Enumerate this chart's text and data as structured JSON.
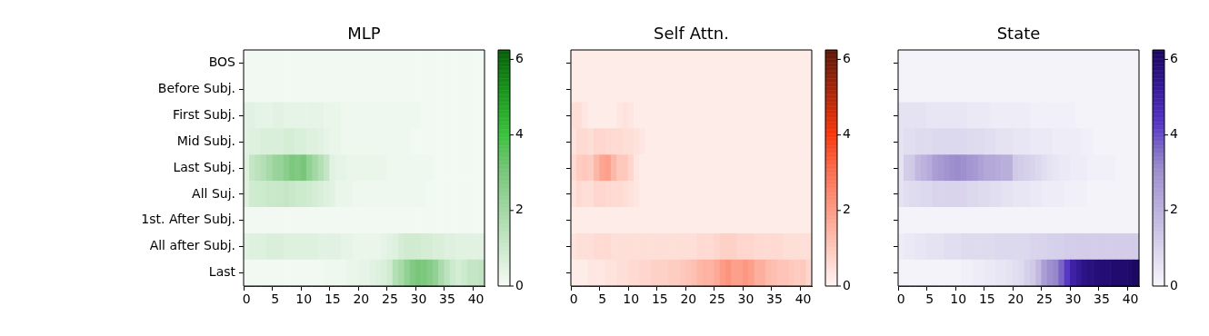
{
  "chart_data": [
    {
      "type": "heatmap",
      "title": "MLP",
      "color": "#74c476",
      "clim": [
        0,
        6.25
      ],
      "cticks": [
        0,
        2,
        4,
        6
      ],
      "categories": [
        "0",
        null,
        null,
        null,
        null,
        "5",
        null,
        null,
        null,
        null,
        "10",
        null,
        null,
        null,
        null,
        "15",
        null,
        null,
        null,
        null,
        "20",
        null,
        null,
        null,
        null,
        "25",
        null,
        null,
        null,
        null,
        "30",
        null,
        null,
        null,
        null,
        "35",
        null,
        null,
        null,
        null,
        "40",
        null
      ],
      "y_categories": [
        "BOS",
        "Before Subj.",
        "First Subj.",
        "Mid Subj.",
        "Last Subj.",
        "All Suj.",
        "1st. After Subj.",
        "All after Subj.",
        "Last"
      ],
      "cells": [
        [
          0.1,
          0.1,
          0.1,
          0.1,
          0.1,
          0.1,
          0.1,
          0.1,
          0.1,
          0.1,
          0.1,
          0.1,
          0.1,
          0.1,
          0.1,
          0.1,
          0.1,
          0.1,
          0.1,
          0.1,
          0.1,
          0.1,
          0.1,
          0.1,
          0.1,
          0.1,
          0.1,
          0.1,
          0.1,
          0.1,
          0.1,
          0.1,
          0.1,
          0.1,
          0.1,
          0.1,
          0.1,
          0.1,
          0.1,
          0.1,
          0.1,
          0.1
        ],
        [
          0.1,
          0.1,
          0.1,
          0.1,
          0.1,
          0.1,
          0.1,
          0.1,
          0.1,
          0.1,
          0.1,
          0.1,
          0.1,
          0.1,
          0.1,
          0.1,
          0.1,
          0.1,
          0.1,
          0.1,
          0.1,
          0.1,
          0.1,
          0.1,
          0.1,
          0.1,
          0.1,
          0.1,
          0.1,
          0.1,
          0.1,
          0.1,
          0.1,
          0.1,
          0.1,
          0.1,
          0.1,
          0.1,
          0.1,
          0.1,
          0.1,
          0.1
        ],
        [
          0.5,
          0.5,
          0.4,
          0.4,
          0.4,
          0.5,
          0.5,
          0.4,
          0.4,
          0.4,
          0.4,
          0.4,
          0.4,
          0.4,
          0.3,
          0.3,
          0.3,
          0.2,
          0.2,
          0.2,
          0.2,
          0.2,
          0.2,
          0.2,
          0.2,
          0.2,
          0.2,
          0.2,
          0.2,
          0.2,
          0.2,
          0.1,
          0.1,
          0.1,
          0.1,
          0.1,
          0.1,
          0.1,
          0.1,
          0.1,
          0.1,
          0.1
        ],
        [
          0.5,
          0.6,
          0.6,
          0.7,
          0.7,
          0.7,
          0.7,
          0.8,
          0.8,
          0.7,
          0.7,
          0.6,
          0.6,
          0.5,
          0.4,
          0.3,
          0.3,
          0.2,
          0.2,
          0.2,
          0.2,
          0.2,
          0.2,
          0.2,
          0.2,
          0.2,
          0.2,
          0.2,
          0.2,
          0.1,
          0.1,
          0.1,
          0.1,
          0.1,
          0.1,
          0.1,
          0.1,
          0.1,
          0.1,
          0.1,
          0.1,
          0.1
        ],
        [
          0.6,
          1.2,
          1.4,
          1.6,
          1.9,
          2.2,
          2.3,
          2.6,
          2.9,
          2.8,
          3.0,
          2.4,
          2.0,
          1.6,
          1.2,
          0.5,
          0.4,
          0.4,
          0.3,
          0.3,
          0.3,
          0.3,
          0.3,
          0.3,
          0.3,
          0.2,
          0.2,
          0.2,
          0.2,
          0.2,
          0.2,
          0.2,
          0.2,
          0.1,
          0.1,
          0.1,
          0.1,
          0.1,
          0.1,
          0.1,
          0.1,
          0.1
        ],
        [
          0.6,
          0.9,
          1.0,
          1.0,
          1.1,
          1.1,
          1.1,
          1.2,
          1.1,
          1.0,
          1.0,
          0.9,
          0.8,
          0.7,
          0.6,
          0.5,
          0.3,
          0.3,
          0.3,
          0.2,
          0.2,
          0.2,
          0.2,
          0.2,
          0.2,
          0.2,
          0.2,
          0.2,
          0.2,
          0.2,
          0.2,
          0.2,
          0.1,
          0.1,
          0.1,
          0.1,
          0.1,
          0.1,
          0.1,
          0.1,
          0.1,
          0.1
        ],
        [
          0.1,
          0.1,
          0.1,
          0.1,
          0.1,
          0.1,
          0.1,
          0.1,
          0.1,
          0.1,
          0.1,
          0.1,
          0.1,
          0.1,
          0.1,
          0.1,
          0.1,
          0.1,
          0.1,
          0.1,
          0.1,
          0.1,
          0.1,
          0.1,
          0.1,
          0.1,
          0.1,
          0.1,
          0.1,
          0.1,
          0.1,
          0.1,
          0.1,
          0.1,
          0.1,
          0.1,
          0.1,
          0.1,
          0.1,
          0.1,
          0.1,
          0.1
        ],
        [
          0.5,
          0.6,
          0.6,
          0.6,
          0.7,
          0.7,
          0.7,
          0.6,
          0.6,
          0.6,
          0.6,
          0.6,
          0.6,
          0.5,
          0.5,
          0.5,
          0.5,
          0.4,
          0.4,
          0.3,
          0.3,
          0.3,
          0.3,
          0.3,
          0.4,
          0.5,
          0.6,
          0.8,
          0.9,
          0.9,
          0.9,
          0.8,
          0.8,
          0.7,
          0.7,
          0.6,
          0.6,
          0.5,
          0.5,
          0.5,
          0.5,
          0.5
        ],
        [
          0.1,
          0.1,
          0.1,
          0.1,
          0.1,
          0.1,
          0.1,
          0.1,
          0.1,
          0.1,
          0.1,
          0.1,
          0.1,
          0.1,
          0.2,
          0.2,
          0.2,
          0.2,
          0.3,
          0.3,
          0.4,
          0.4,
          0.5,
          0.6,
          0.7,
          0.9,
          1.6,
          1.9,
          2.4,
          2.8,
          3.0,
          2.9,
          2.7,
          2.4,
          1.8,
          1.4,
          1.0,
          0.8,
          1.0,
          1.2,
          1.2,
          1.3
        ]
      ]
    },
    {
      "type": "heatmap",
      "title": "Self Attn.",
      "color": "#fb6a4a",
      "clim": [
        0,
        6.25
      ],
      "cticks": [
        0,
        2,
        4,
        6
      ],
      "tick_labels": "x",
      "categories": [
        "0",
        null,
        null,
        null,
        null,
        "5",
        null,
        null,
        null,
        null,
        "10",
        null,
        null,
        null,
        null,
        "15",
        null,
        null,
        null,
        null,
        "20",
        null,
        null,
        null,
        null,
        "25",
        null,
        null,
        null,
        null,
        "30",
        null,
        null,
        null,
        null,
        "35",
        null,
        null,
        null,
        null,
        "40",
        null
      ],
      "y_categories": [
        null,
        null,
        null,
        null,
        null,
        null,
        null,
        null,
        null
      ],
      "cells": [
        [
          0.2,
          0.2,
          0.2,
          0.2,
          0.2,
          0.2,
          0.2,
          0.2,
          0.2,
          0.2,
          0.2,
          0.2,
          0.2,
          0.2,
          0.2,
          0.2,
          0.2,
          0.2,
          0.2,
          0.2,
          0.2,
          0.2,
          0.2,
          0.2,
          0.2,
          0.2,
          0.2,
          0.2,
          0.2,
          0.2,
          0.2,
          0.2,
          0.2,
          0.2,
          0.2,
          0.2,
          0.2,
          0.2,
          0.2,
          0.2,
          0.2,
          0.2
        ],
        [
          0.2,
          0.2,
          0.2,
          0.2,
          0.2,
          0.2,
          0.2,
          0.2,
          0.2,
          0.2,
          0.2,
          0.2,
          0.2,
          0.2,
          0.2,
          0.2,
          0.2,
          0.2,
          0.2,
          0.2,
          0.2,
          0.2,
          0.2,
          0.2,
          0.2,
          0.2,
          0.2,
          0.2,
          0.2,
          0.2,
          0.2,
          0.2,
          0.2,
          0.2,
          0.2,
          0.2,
          0.2,
          0.2,
          0.2,
          0.2,
          0.2,
          0.2
        ],
        [
          0.5,
          0.5,
          0.3,
          0.2,
          0.2,
          0.2,
          0.2,
          0.2,
          0.3,
          0.4,
          0.3,
          0.2,
          0.2,
          0.2,
          0.2,
          0.2,
          0.2,
          0.2,
          0.2,
          0.2,
          0.2,
          0.2,
          0.2,
          0.2,
          0.2,
          0.2,
          0.2,
          0.2,
          0.2,
          0.2,
          0.2,
          0.2,
          0.2,
          0.2,
          0.2,
          0.2,
          0.2,
          0.2,
          0.2,
          0.2,
          0.2,
          0.2
        ],
        [
          0.4,
          0.6,
          0.6,
          0.5,
          0.7,
          0.7,
          0.6,
          0.6,
          0.6,
          0.5,
          0.5,
          0.4,
          0.3,
          0.2,
          0.2,
          0.2,
          0.2,
          0.2,
          0.2,
          0.2,
          0.2,
          0.2,
          0.2,
          0.2,
          0.2,
          0.2,
          0.2,
          0.2,
          0.2,
          0.2,
          0.2,
          0.2,
          0.2,
          0.2,
          0.2,
          0.2,
          0.2,
          0.2,
          0.2,
          0.2,
          0.2,
          0.2
        ],
        [
          0.6,
          0.9,
          1.0,
          0.9,
          1.4,
          1.8,
          1.9,
          1.4,
          1.0,
          1.0,
          0.7,
          0.3,
          0.2,
          0.2,
          0.2,
          0.2,
          0.2,
          0.2,
          0.2,
          0.2,
          0.2,
          0.2,
          0.2,
          0.2,
          0.2,
          0.2,
          0.2,
          0.2,
          0.2,
          0.2,
          0.2,
          0.2,
          0.2,
          0.2,
          0.2,
          0.2,
          0.2,
          0.2,
          0.2,
          0.2,
          0.2,
          0.2
        ],
        [
          0.4,
          0.6,
          0.5,
          0.5,
          0.7,
          0.7,
          0.6,
          0.6,
          0.6,
          0.5,
          0.4,
          0.3,
          0.2,
          0.2,
          0.2,
          0.2,
          0.2,
          0.2,
          0.2,
          0.2,
          0.2,
          0.2,
          0.2,
          0.2,
          0.2,
          0.2,
          0.2,
          0.2,
          0.2,
          0.2,
          0.2,
          0.2,
          0.2,
          0.2,
          0.2,
          0.2,
          0.2,
          0.2,
          0.2,
          0.2,
          0.2,
          0.2
        ],
        [
          0.2,
          0.2,
          0.2,
          0.2,
          0.2,
          0.2,
          0.2,
          0.2,
          0.2,
          0.2,
          0.2,
          0.2,
          0.2,
          0.2,
          0.2,
          0.2,
          0.2,
          0.2,
          0.2,
          0.2,
          0.2,
          0.2,
          0.2,
          0.2,
          0.2,
          0.2,
          0.2,
          0.2,
          0.2,
          0.2,
          0.2,
          0.2,
          0.2,
          0.2,
          0.2,
          0.2,
          0.2,
          0.2,
          0.2,
          0.2,
          0.2,
          0.2
        ],
        [
          0.4,
          0.5,
          0.5,
          0.5,
          0.6,
          0.6,
          0.6,
          0.5,
          0.5,
          0.5,
          0.5,
          0.5,
          0.5,
          0.5,
          0.5,
          0.5,
          0.5,
          0.5,
          0.5,
          0.5,
          0.5,
          0.5,
          0.6,
          0.6,
          0.6,
          0.7,
          0.8,
          0.8,
          0.8,
          0.7,
          0.7,
          0.7,
          0.6,
          0.6,
          0.6,
          0.6,
          0.6,
          0.5,
          0.5,
          0.5,
          0.5,
          0.5
        ],
        [
          0.2,
          0.2,
          0.2,
          0.3,
          0.3,
          0.3,
          0.4,
          0.4,
          0.5,
          0.5,
          0.6,
          0.6,
          0.7,
          0.7,
          0.8,
          0.8,
          0.8,
          0.9,
          0.9,
          1.0,
          1.1,
          1.2,
          1.4,
          1.5,
          1.5,
          1.7,
          2.0,
          2.2,
          1.9,
          1.9,
          2.1,
          1.9,
          1.6,
          1.6,
          1.3,
          1.2,
          1.1,
          1.1,
          1.0,
          0.9,
          1.0,
          0.7
        ]
      ]
    },
    {
      "type": "heatmap",
      "title": "State",
      "color": "#9a8ccc",
      "clim": [
        0,
        6.25
      ],
      "cticks": [
        0,
        2,
        4,
        6
      ],
      "tick_labels": "x",
      "categories": [
        "0",
        null,
        null,
        null,
        null,
        "5",
        null,
        null,
        null,
        null,
        "10",
        null,
        null,
        null,
        null,
        "15",
        null,
        null,
        null,
        null,
        "20",
        null,
        null,
        null,
        null,
        "25",
        null,
        null,
        null,
        null,
        "30",
        null,
        null,
        null,
        null,
        "35",
        null,
        null,
        null,
        null,
        "40",
        null
      ],
      "y_categories": [
        null,
        null,
        null,
        null,
        null,
        null,
        null,
        null,
        null
      ],
      "cells": [
        [
          0.1,
          0.1,
          0.1,
          0.1,
          0.1,
          0.1,
          0.1,
          0.1,
          0.1,
          0.1,
          0.1,
          0.1,
          0.1,
          0.1,
          0.1,
          0.1,
          0.1,
          0.1,
          0.1,
          0.1,
          0.1,
          0.1,
          0.1,
          0.1,
          0.1,
          0.1,
          0.1,
          0.1,
          0.1,
          0.1,
          0.1,
          0.1,
          0.1,
          0.1,
          0.1,
          0.1,
          0.1,
          0.1,
          0.1,
          0.1,
          0.1,
          0.1
        ],
        [
          0.1,
          0.1,
          0.1,
          0.1,
          0.1,
          0.1,
          0.1,
          0.1,
          0.1,
          0.1,
          0.1,
          0.1,
          0.1,
          0.1,
          0.1,
          0.1,
          0.1,
          0.1,
          0.1,
          0.1,
          0.1,
          0.1,
          0.1,
          0.1,
          0.1,
          0.1,
          0.1,
          0.1,
          0.1,
          0.1,
          0.1,
          0.1,
          0.1,
          0.1,
          0.1,
          0.1,
          0.1,
          0.1,
          0.1,
          0.1,
          0.1,
          0.1
        ],
        [
          0.6,
          0.6,
          0.6,
          0.6,
          0.6,
          0.5,
          0.5,
          0.5,
          0.5,
          0.5,
          0.5,
          0.5,
          0.4,
          0.4,
          0.4,
          0.4,
          0.3,
          0.3,
          0.3,
          0.3,
          0.3,
          0.3,
          0.3,
          0.2,
          0.2,
          0.2,
          0.2,
          0.2,
          0.2,
          0.2,
          0.2,
          0.1,
          0.1,
          0.1,
          0.1,
          0.1,
          0.1,
          0.1,
          0.1,
          0.1,
          0.1,
          0.1
        ],
        [
          0.6,
          0.7,
          0.7,
          0.8,
          0.8,
          0.8,
          0.9,
          0.9,
          0.9,
          0.9,
          0.9,
          0.9,
          0.8,
          0.8,
          0.8,
          0.7,
          0.7,
          0.6,
          0.6,
          0.6,
          0.5,
          0.5,
          0.5,
          0.4,
          0.4,
          0.4,
          0.4,
          0.3,
          0.3,
          0.3,
          0.3,
          0.3,
          0.2,
          0.2,
          0.1,
          0.1,
          0.1,
          0.1,
          0.1,
          0.1,
          0.1,
          0.1
        ],
        [
          0.6,
          1.2,
          1.3,
          1.8,
          2.0,
          2.2,
          2.6,
          2.7,
          2.9,
          3.0,
          3.1,
          3.0,
          2.8,
          2.7,
          2.5,
          2.3,
          2.3,
          2.2,
          2.1,
          2.1,
          1.3,
          1.2,
          1.1,
          1.0,
          0.9,
          0.7,
          0.6,
          0.5,
          0.4,
          0.4,
          0.3,
          0.3,
          0.3,
          0.2,
          0.2,
          0.2,
          0.2,
          0.2,
          0.1,
          0.1,
          0.1,
          0.1
        ],
        [
          0.6,
          0.7,
          0.8,
          0.8,
          0.9,
          0.9,
          1.0,
          1.0,
          1.0,
          1.0,
          1.0,
          1.0,
          0.9,
          0.9,
          0.8,
          0.8,
          0.7,
          0.7,
          0.6,
          0.6,
          0.5,
          0.5,
          0.5,
          0.4,
          0.4,
          0.3,
          0.3,
          0.3,
          0.3,
          0.2,
          0.2,
          0.2,
          0.2,
          0.1,
          0.1,
          0.1,
          0.1,
          0.1,
          0.1,
          0.1,
          0.1,
          0.1
        ],
        [
          0.1,
          0.1,
          0.1,
          0.1,
          0.1,
          0.1,
          0.1,
          0.1,
          0.1,
          0.1,
          0.1,
          0.1,
          0.1,
          0.1,
          0.1,
          0.1,
          0.1,
          0.1,
          0.1,
          0.1,
          0.1,
          0.1,
          0.1,
          0.1,
          0.1,
          0.1,
          0.1,
          0.1,
          0.1,
          0.1,
          0.1,
          0.1,
          0.1,
          0.1,
          0.1,
          0.1,
          0.1,
          0.1,
          0.1,
          0.1,
          0.1,
          0.1
        ],
        [
          0.3,
          0.4,
          0.4,
          0.5,
          0.5,
          0.6,
          0.6,
          0.6,
          0.7,
          0.7,
          0.7,
          0.8,
          0.8,
          0.8,
          0.8,
          0.8,
          0.8,
          0.9,
          0.9,
          0.9,
          0.9,
          0.9,
          0.9,
          1.0,
          1.0,
          1.0,
          1.1,
          1.1,
          1.1,
          1.2,
          1.2,
          1.2,
          1.2,
          1.2,
          1.2,
          1.2,
          1.2,
          1.2,
          1.2,
          1.2,
          1.2,
          1.2
        ],
        [
          0.1,
          0.1,
          0.1,
          0.1,
          0.1,
          0.1,
          0.1,
          0.1,
          0.1,
          0.1,
          0.1,
          0.2,
          0.2,
          0.3,
          0.3,
          0.4,
          0.4,
          0.5,
          0.5,
          0.6,
          0.7,
          0.8,
          1.1,
          1.3,
          1.8,
          2.6,
          3.0,
          3.2,
          3.7,
          4.3,
          5.0,
          5.3,
          5.6,
          5.7,
          5.8,
          5.9,
          5.9,
          6.0,
          6.0,
          6.0,
          6.1,
          6.2
        ]
      ]
    }
  ]
}
